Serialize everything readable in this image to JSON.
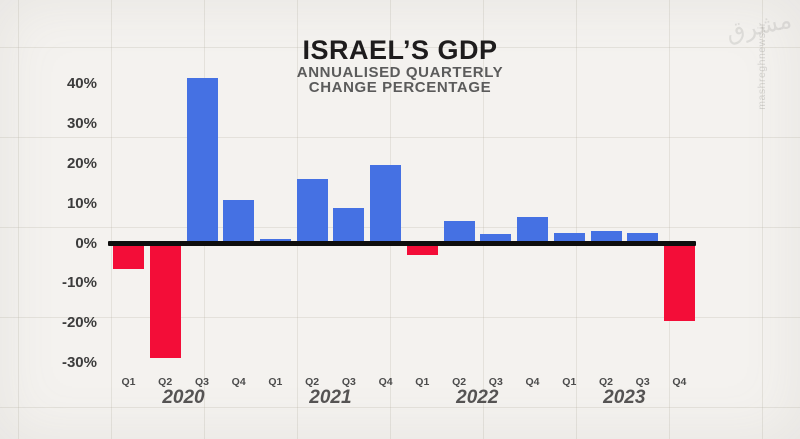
{
  "header": {
    "title": "ISRAEL’S GDP",
    "subtitle_line1": "ANNUALISED QUARTERLY",
    "subtitle_line2": "CHANGE PERCENTAGE"
  },
  "watermark": {
    "site_text": "mashreghnews.ir",
    "logo_text": "مشرق"
  },
  "colors": {
    "positive_bar": "#4571e3",
    "negative_bar": "#f30d38",
    "zero_line": "#0e0e0e",
    "background": "#f4f2ef",
    "grid_line": "#e7e3dc",
    "tick_label": "#3c3c3c",
    "year_label": "#555353"
  },
  "chart_data": {
    "type": "bar",
    "title": "ISRAEL’S GDP",
    "subtitle": "ANNUALISED QUARTERLY CHANGE PERCENTAGE",
    "unit": "percent",
    "xlabel": "",
    "ylabel": "",
    "ylim": [
      -33,
      45
    ],
    "y_ticks": [
      40,
      30,
      20,
      10,
      0,
      -10,
      -20,
      -30
    ],
    "y_tick_labels": [
      "40%",
      "30%",
      "20%",
      "10%",
      "0%",
      "-10%",
      "-20%",
      "-30%"
    ],
    "grid": "faint paper-grid background, emphasized black zero baseline",
    "legend": "none",
    "years": [
      "2020",
      "2021",
      "2022",
      "2023"
    ],
    "categories": [
      "Q1",
      "Q2",
      "Q3",
      "Q4",
      "Q1",
      "Q2",
      "Q3",
      "Q4",
      "Q1",
      "Q2",
      "Q3",
      "Q4",
      "Q1",
      "Q2",
      "Q3",
      "Q4"
    ],
    "values": [
      -6.5,
      -28.8,
      41.3,
      10.8,
      0.9,
      16.0,
      8.8,
      19.5,
      -3.0,
      5.6,
      2.2,
      6.6,
      2.6,
      3.0,
      2.4,
      -19.5
    ]
  }
}
